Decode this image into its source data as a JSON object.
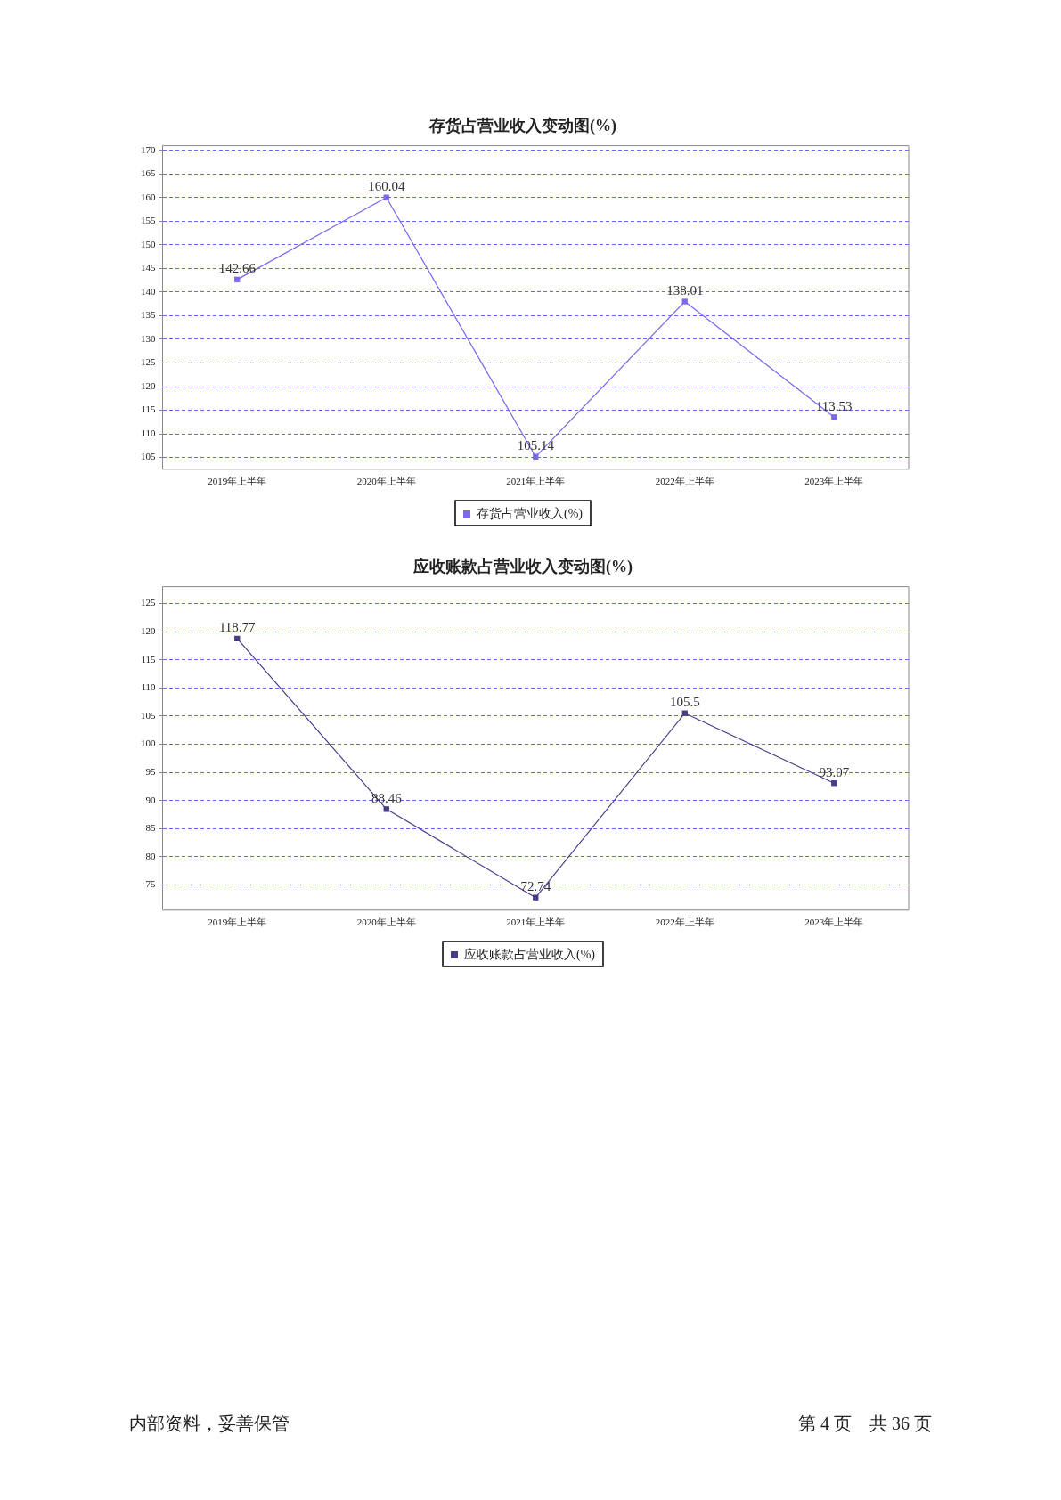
{
  "chart_data": [
    {
      "type": "line",
      "title": "存货占营业收入变动图(%)",
      "categories": [
        "2019年上半年",
        "2020年上半年",
        "2021年上半年",
        "2022年上半年",
        "2023年上半年"
      ],
      "series": [
        {
          "name": "存货占营业收入(%)",
          "color": "#7b68ee",
          "values": [
            142.66,
            160.04,
            105.14,
            138.01,
            113.53
          ]
        }
      ],
      "ylim": [
        102.5,
        171
      ],
      "yticks": [
        105,
        110,
        115,
        120,
        125,
        130,
        135,
        140,
        145,
        150,
        155,
        160,
        165,
        170
      ],
      "grid": "y",
      "legend": "bottom",
      "marker": "square",
      "line_style": "solid",
      "data_labels": true
    },
    {
      "type": "line",
      "title": "应收账款占营业收入变动图(%)",
      "categories": [
        "2019年上半年",
        "2020年上半年",
        "2021年上半年",
        "2022年上半年",
        "2023年上半年"
      ],
      "series": [
        {
          "name": "应收账款占营业收入(%)",
          "color": "#483d8b",
          "values": [
            118.77,
            88.46,
            72.74,
            105.5,
            93.07
          ]
        }
      ],
      "ylim": [
        70.5,
        128
      ],
      "yticks": [
        75,
        80,
        85,
        90,
        95,
        100,
        105,
        110,
        115,
        120,
        125
      ],
      "grid": "y",
      "legend": "bottom",
      "marker": "square",
      "line_style": "solid",
      "data_labels": true,
      "annotations": [
        "内部资料，妥善保管",
        "第 4 页　共 36 页"
      ]
    }
  ]
}
